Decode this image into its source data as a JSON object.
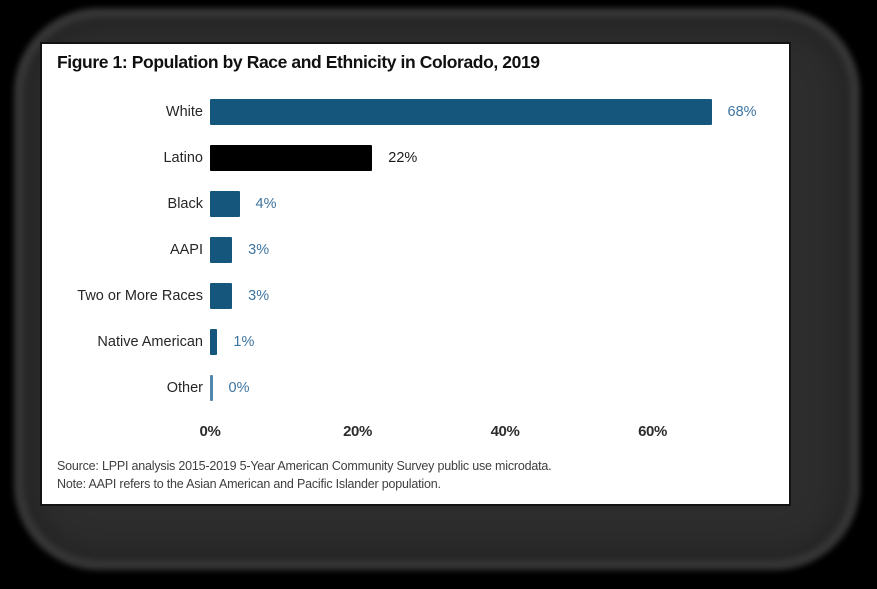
{
  "figure": {
    "title": "Figure 1: Population by Race and Ethnicity in Colorado, 2019",
    "source_line": "Source: LPPI analysis 2015-2019 5-Year American Community Survey public use microdata.",
    "note_line": "Note: AAPI refers to the Asian American and Pacific Islander population."
  },
  "chart_data": {
    "type": "bar",
    "orientation": "horizontal",
    "title": "Figure 1: Population by Race and Ethnicity in Colorado, 2019",
    "categories": [
      "White",
      "Latino",
      "Black",
      "AAPI",
      "Two or More Races",
      "Native American",
      "Other"
    ],
    "values": [
      68,
      22,
      4,
      3,
      3,
      1,
      0
    ],
    "value_labels": [
      "68%",
      "22%",
      "4%",
      "3%",
      "3%",
      "1%",
      "0%"
    ],
    "bar_colors": [
      "#15567d",
      "#000000",
      "#15567d",
      "#15567d",
      "#15567d",
      "#15567d",
      "#5286ad"
    ],
    "value_label_colors": [
      "#3e74a0",
      "#1b1b1b",
      "#3e74a0",
      "#3e74a0",
      "#3e74a0",
      "#3e74a0",
      "#3e74a0"
    ],
    "x_ticks": [
      {
        "label": "0%",
        "value": 0
      },
      {
        "label": "20%",
        "value": 20
      },
      {
        "label": "40%",
        "value": 40
      },
      {
        "label": "60%",
        "value": 60
      }
    ],
    "xlim": [
      0,
      78
    ],
    "grid": false,
    "legend": false,
    "xlabel": "",
    "ylabel": "",
    "source": "Source: LPPI analysis 2015-2019 5-Year American Community Survey public use microdata.",
    "note": "Note: AAPI refers to the Asian American and Pacific Islander population."
  },
  "colors": {
    "page_background": "#000000",
    "shadow_blob": "#2d2d2d",
    "card_background": "#ffffff",
    "card_border": "#131313",
    "primary_bar": "#15567d",
    "latino_bar": "#000000",
    "value_label_blue": "#3e74a0",
    "tick_label": "#2d2d2d",
    "category_label": "#262626",
    "footnote_text": "#3f3f3f"
  }
}
